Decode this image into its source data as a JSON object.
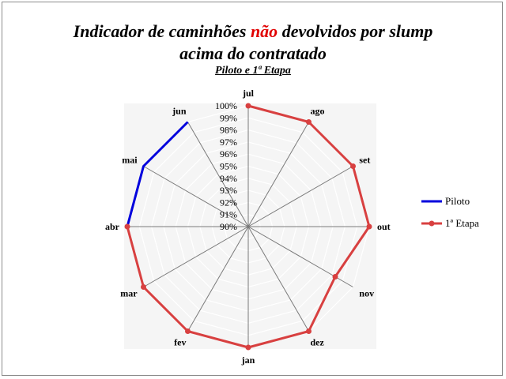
{
  "chart_data": {
    "type": "radar",
    "title_parts": [
      "Indicador de caminhões ",
      "não",
      " devolvidos por slump"
    ],
    "title_line2": "acima do contratado",
    "subtitle": "Piloto e 1ª Etapa",
    "categories": [
      "jul",
      "ago",
      "set",
      "out",
      "nov",
      "dez",
      "jan",
      "fev",
      "mar",
      "abr",
      "mai",
      "jun"
    ],
    "ticks": [
      "90%",
      "91%",
      "92%",
      "93%",
      "94%",
      "95%",
      "96%",
      "97%",
      "98%",
      "99%",
      "100%"
    ],
    "range": [
      90,
      100
    ],
    "series": [
      {
        "name": "Piloto",
        "color": "#0000dd",
        "values": [
          null,
          null,
          null,
          null,
          null,
          null,
          null,
          null,
          null,
          100,
          100,
          100
        ]
      },
      {
        "name": "1ª Etapa",
        "color": "#d84040",
        "values": [
          100,
          100,
          100,
          100,
          98.3,
          100,
          100,
          100,
          100,
          100,
          null,
          null
        ]
      }
    ],
    "legend_position": "right",
    "grid": true
  }
}
